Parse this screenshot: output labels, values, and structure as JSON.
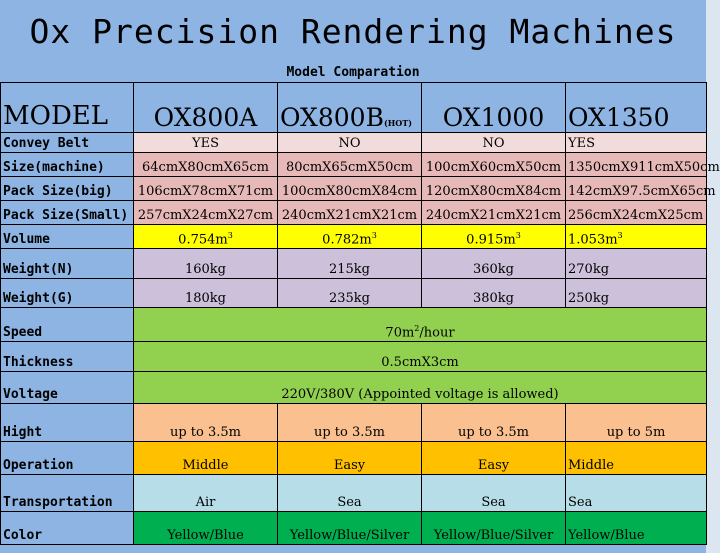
{
  "title": "Ox Precision Rendering Machines",
  "subtitle": "Model Comparation",
  "header": {
    "label": "MODEL",
    "models": [
      "OX800A",
      "OX800B",
      "OX1000",
      "OX1350"
    ],
    "hot_tag": "(HOT)"
  },
  "rows": {
    "convey_belt": {
      "label": "Convey Belt",
      "values": [
        "YES",
        "NO",
        "NO",
        "YES"
      ]
    },
    "size_machine": {
      "label": "Size(machine)",
      "values": [
        "64cmX80cmX65cm",
        "80cmX65cmX50cm",
        "100cmX60cmX50cm",
        "1350cmX911cmX50cm"
      ]
    },
    "pack_big": {
      "label": "Pack Size(big)",
      "values": [
        "106cmX78cmX71cm",
        "100cmX80cmX84cm",
        "120cmX80cmX84cm",
        "142cmX97.5cmX65cm"
      ]
    },
    "pack_small": {
      "label": "Pack Size(Small)",
      "values": [
        "257cmX24cmX27cm",
        "240cmX21cmX21cm",
        "240cmX21cmX21cm",
        "256cmX24cmX25cm"
      ]
    },
    "volume": {
      "label": "Volume",
      "values": [
        "0.754m",
        "0.782m",
        "0.915m",
        "1.053m"
      ],
      "unit_sup": "3"
    },
    "weight_n": {
      "label": "Weight(N)",
      "values": [
        "160kg",
        "215kg",
        "360kg",
        "270kg"
      ]
    },
    "weight_g": {
      "label": "Weight(G)",
      "values": [
        "180kg",
        "235kg",
        "380kg",
        "250kg"
      ]
    },
    "speed": {
      "label": "Speed",
      "value": "70m",
      "value_sup": "2",
      "value_suffix": "/hour"
    },
    "thickness": {
      "label": "Thickness",
      "value": "0.5cmX3cm"
    },
    "voltage": {
      "label": "Voltage",
      "value": "220V/380V (Appointed voltage is allowed)"
    },
    "hight": {
      "label": "Hight",
      "values": [
        "up to 3.5m",
        "up to 3.5m",
        "up to 3.5m",
        "up to 5m"
      ]
    },
    "operation": {
      "label": "Operation",
      "values": [
        "Middle",
        "Easy",
        "Easy",
        "Middle"
      ]
    },
    "transportation": {
      "label": "Transportation",
      "values": [
        "Air",
        "Sea",
        "Sea",
        "Sea"
      ]
    },
    "color": {
      "label": "Color",
      "values": [
        "Yellow/Blue",
        "Yellow/Blue/Silver",
        "Yellow/Blue/Silver",
        "Yellow/Blue"
      ]
    }
  },
  "colors": {
    "title_bg": "#8db4e2",
    "pink": "#f2dcdb",
    "rose": "#e6b9b8",
    "yellow": "#ffff00",
    "lavender": "#ccc0da",
    "green": "#92d050",
    "peach": "#fac090",
    "orange": "#ffc000",
    "light_blue": "#b7dee8",
    "dark_green": "#00b050"
  }
}
